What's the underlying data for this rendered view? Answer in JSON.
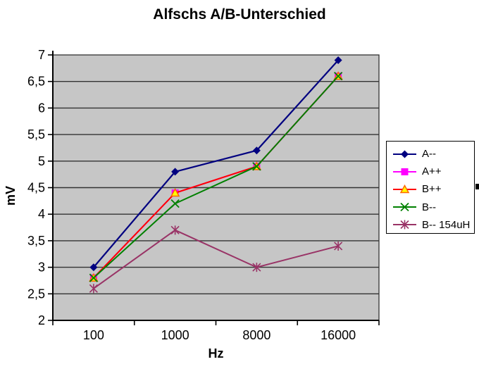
{
  "chart_data": {
    "type": "line",
    "title": "Alfschs A/B-Unterschied",
    "xlabel": "Hz",
    "ylabel": "mV",
    "x_categories": [
      "100",
      "1000",
      "8000",
      "16000"
    ],
    "x_tick_labels": [
      "100",
      "1000",
      "8000",
      "16000"
    ],
    "ylim": [
      2,
      7
    ],
    "y_tick_step": 0.5,
    "y_tick_labels": [
      "7",
      "6,5",
      "6",
      "5,5",
      "5",
      "4,5",
      "4",
      "3,5",
      "3",
      "2,5",
      "2"
    ],
    "grid": "horizontal-major",
    "plot_bg_color": "#c6c6c6",
    "gridline_color": "#333333",
    "axis_color": "#000000",
    "legend_position": "right",
    "series": [
      {
        "name": "A--",
        "values": [
          3.0,
          4.8,
          5.2,
          6.9
        ],
        "color": "#000080",
        "marker": "diamond"
      },
      {
        "name": "A++",
        "values": [
          2.8,
          4.4,
          4.9,
          6.6
        ],
        "color": "#ff00ff",
        "marker": "square"
      },
      {
        "name": "B++",
        "values": [
          2.8,
          4.4,
          4.9,
          6.6
        ],
        "color": "#ff0000",
        "marker": "triangle",
        "marker_fill": "#ffff00",
        "marker_stroke": "#ff6600"
      },
      {
        "name": "B--",
        "values": [
          2.8,
          4.2,
          4.9,
          6.6
        ],
        "color": "#008000",
        "marker": "x"
      },
      {
        "name": "B-- 154uH",
        "values": [
          2.6,
          3.7,
          3.0,
          3.4
        ],
        "color": "#993366",
        "marker": "asterisk"
      }
    ]
  },
  "icons": {
    "selection_handle": "black-square-resize-handle"
  }
}
